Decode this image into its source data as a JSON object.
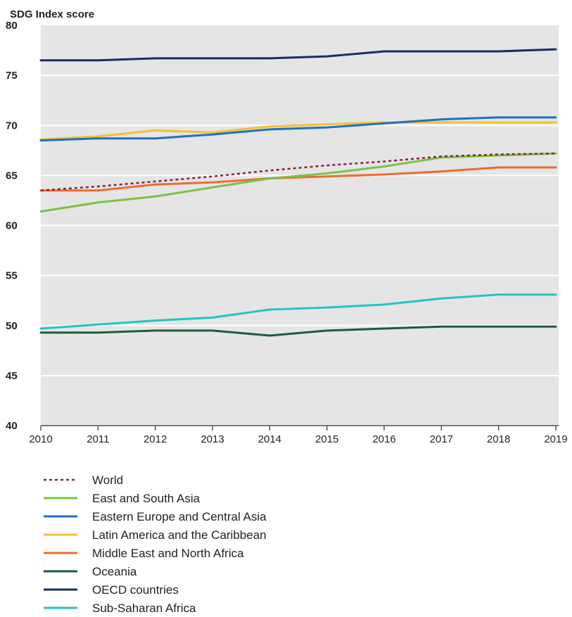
{
  "chart_data": {
    "type": "line",
    "ylabel": "SDG Index score",
    "xlabel": "",
    "ylim": [
      40,
      80
    ],
    "yticks": [
      "40",
      "45",
      "50",
      "55",
      "60",
      "65",
      "70",
      "75",
      "80"
    ],
    "x": [
      "2010",
      "2011",
      "2012",
      "2013",
      "2014",
      "2015",
      "2016",
      "2017",
      "2018",
      "2019"
    ],
    "grid": "horizontal",
    "legend_position": "bottom",
    "series": [
      {
        "name": "World",
        "color": "#8b2332",
        "dashed": true,
        "values": [
          63.5,
          63.9,
          64.4,
          64.9,
          65.5,
          66.0,
          66.4,
          66.9,
          67.1,
          67.2
        ]
      },
      {
        "name": "East and South Asia",
        "color": "#7cc242",
        "dashed": false,
        "values": [
          61.4,
          62.3,
          62.9,
          63.8,
          64.7,
          65.2,
          65.9,
          66.8,
          67.0,
          67.2
        ]
      },
      {
        "name": "Eastern Europe and Central Asia",
        "color": "#1f6fc5",
        "dashed": false,
        "values": [
          68.5,
          68.7,
          68.7,
          69.1,
          69.6,
          69.8,
          70.2,
          70.6,
          70.8,
          70.8
        ]
      },
      {
        "name": "Latin America and the Caribbean",
        "color": "#f2c12e",
        "dashed": false,
        "values": [
          68.6,
          68.9,
          69.5,
          69.3,
          69.9,
          70.1,
          70.3,
          70.3,
          70.3,
          70.3
        ]
      },
      {
        "name": "Middle East and North Africa",
        "color": "#ee6c2e",
        "dashed": false,
        "values": [
          63.5,
          63.5,
          64.1,
          64.3,
          64.7,
          64.9,
          65.1,
          65.4,
          65.8,
          65.8
        ]
      },
      {
        "name": "Oceania",
        "color": "#1c5c3c",
        "dashed": false,
        "values": [
          49.3,
          49.3,
          49.5,
          49.5,
          49.0,
          49.5,
          49.7,
          49.9,
          49.9,
          49.9
        ]
      },
      {
        "name": "OECD countries",
        "color": "#1b2a6b",
        "dashed": false,
        "values": [
          76.5,
          76.5,
          76.7,
          76.7,
          76.7,
          76.9,
          77.4,
          77.4,
          77.4,
          77.6
        ]
      },
      {
        "name": "Sub-Saharan Africa",
        "color": "#25c4c4",
        "dashed": false,
        "values": [
          49.7,
          50.1,
          50.5,
          50.8,
          51.6,
          51.8,
          52.1,
          52.7,
          53.1,
          53.1
        ]
      }
    ]
  }
}
